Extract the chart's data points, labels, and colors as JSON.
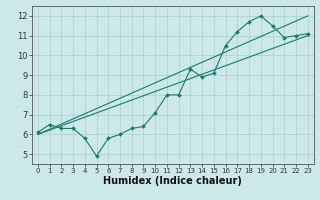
{
  "xlabel": "Humidex (Indice chaleur)",
  "x_data": [
    0,
    1,
    2,
    3,
    4,
    5,
    6,
    7,
    8,
    9,
    10,
    11,
    12,
    13,
    14,
    15,
    16,
    17,
    18,
    19,
    20,
    21,
    22,
    23
  ],
  "y_main": [
    6.1,
    6.5,
    6.3,
    6.3,
    5.8,
    4.9,
    5.8,
    6.0,
    6.3,
    6.4,
    7.1,
    8.0,
    8.0,
    9.3,
    8.9,
    9.1,
    10.5,
    11.2,
    11.7,
    12.0,
    11.5,
    10.9,
    11.0,
    11.1
  ],
  "y_line1": [
    6.0,
    6.217,
    6.435,
    6.652,
    6.87,
    7.087,
    7.304,
    7.522,
    7.739,
    7.957,
    8.174,
    8.391,
    8.609,
    8.826,
    9.044,
    9.261,
    9.478,
    9.696,
    9.913,
    10.13,
    10.348,
    10.565,
    10.783,
    11.0
  ],
  "y_line2": [
    6.0,
    6.261,
    6.522,
    6.783,
    7.043,
    7.304,
    7.565,
    7.826,
    8.087,
    8.348,
    8.609,
    8.87,
    9.13,
    9.391,
    9.652,
    9.913,
    10.174,
    10.435,
    10.696,
    10.957,
    11.217,
    11.478,
    11.739,
    12.0
  ],
  "ylim": [
    4.5,
    12.5
  ],
  "xlim": [
    -0.5,
    23.5
  ],
  "color": "#1a7a6e",
  "bg_color": "#cce8e8",
  "grid_color": "#aacfcf",
  "xlabel_fontsize": 7,
  "tick_fontsize_x": 5,
  "tick_fontsize_y": 6
}
